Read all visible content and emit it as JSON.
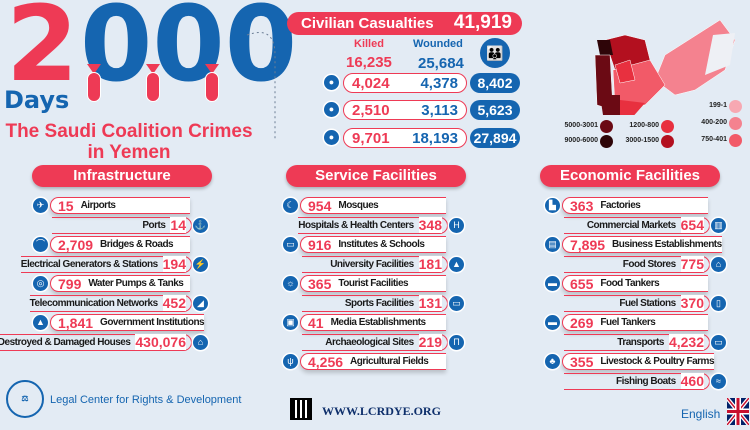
{
  "header": {
    "big_number_first": "2",
    "big_number_rest": "000",
    "days": "Days",
    "title_line1": "The Saudi Coalition Crimes",
    "title_line2": "in Yemen"
  },
  "casualties": {
    "title": "Civilian Casualties",
    "total": "41,919",
    "killed_label": "Killed",
    "wounded_label": "Wounded",
    "killed_total": "16,235",
    "wounded_total": "25,684",
    "rows": [
      {
        "group": "children-icon",
        "killed": "4,024",
        "wounded": "4,378",
        "total": "8,402"
      },
      {
        "group": "woman-icon",
        "killed": "2,510",
        "wounded": "3,113",
        "total": "5,623"
      },
      {
        "group": "man-icon",
        "killed": "9,701",
        "wounded": "18,193",
        "total": "27,894"
      }
    ]
  },
  "map_legend": [
    {
      "label": "5000-3001",
      "color": "#6b0a14"
    },
    {
      "label": "9000-6000",
      "color": "#2e0508"
    },
    {
      "label": "1200-800",
      "color": "#e8303f"
    },
    {
      "label": "3000-1500",
      "color": "#b3101f"
    },
    {
      "label": "199-1",
      "color": "#f7a8b2"
    },
    {
      "label": "400-200",
      "color": "#f4828f"
    },
    {
      "label": "750-401",
      "color": "#f25a68"
    }
  ],
  "sections": [
    {
      "title": "Infrastructure",
      "items": [
        {
          "value": "15",
          "label": "Airports",
          "side": "l",
          "icon": "airplane-icon",
          "glyph": "✈"
        },
        {
          "value": "14",
          "label": "Ports",
          "side": "r",
          "icon": "anchor-icon",
          "glyph": "⚓"
        },
        {
          "value": "2,709",
          "label": "Bridges & Roads",
          "side": "l",
          "icon": "bridge-icon",
          "glyph": "⌒"
        },
        {
          "value": "194",
          "label": "Electrical Generators & Stations",
          "side": "r",
          "icon": "generator-icon",
          "glyph": "⚡"
        },
        {
          "value": "799",
          "label": "Water Pumps & Tanks",
          "side": "l",
          "icon": "water-pump-icon",
          "glyph": "◎"
        },
        {
          "value": "452",
          "label": "Telecommunication Networks",
          "side": "r",
          "icon": "satellite-dish-icon",
          "glyph": "◢"
        },
        {
          "value": "1,841",
          "label": "Government Institutions",
          "side": "l",
          "icon": "government-building-icon",
          "glyph": "▲"
        },
        {
          "value": "430,076",
          "label": "Destroyed & Damaged Houses",
          "side": "r",
          "icon": "house-icon",
          "glyph": "⌂"
        }
      ]
    },
    {
      "title": "Service Facilities",
      "items": [
        {
          "value": "954",
          "label": "Mosques",
          "side": "l",
          "icon": "mosque-icon",
          "glyph": "☾"
        },
        {
          "value": "348",
          "label": "Hospitals & Health Centers",
          "side": "r",
          "icon": "hospital-icon",
          "glyph": "H"
        },
        {
          "value": "916",
          "label": "Institutes & Schools",
          "side": "l",
          "icon": "book-icon",
          "glyph": "▭"
        },
        {
          "value": "181",
          "label": "University Facilities",
          "side": "r",
          "icon": "graduation-cap-icon",
          "glyph": "▲"
        },
        {
          "value": "365",
          "label": "Tourist Facilities",
          "side": "l",
          "icon": "beach-icon",
          "glyph": "☼"
        },
        {
          "value": "131",
          "label": "Sports Facilities",
          "side": "r",
          "icon": "stadium-icon",
          "glyph": "▭"
        },
        {
          "value": "41",
          "label": "Media Establishments",
          "side": "l",
          "icon": "tv-icon",
          "glyph": "▣"
        },
        {
          "value": "219",
          "label": "Archaeological Sites",
          "side": "r",
          "icon": "monument-icon",
          "glyph": "Π"
        },
        {
          "value": "4,256",
          "label": "Agricultural Fields",
          "side": "l",
          "icon": "wheat-icon",
          "glyph": "ψ"
        }
      ]
    },
    {
      "title": "Economic Facilities",
      "items": [
        {
          "value": "363",
          "label": "Factories",
          "side": "l",
          "icon": "factory-icon",
          "glyph": "▙"
        },
        {
          "value": "654",
          "label": "Commercial Markets",
          "side": "r",
          "icon": "buildings-icon",
          "glyph": "▥"
        },
        {
          "value": "7,895",
          "label": "Business Establishments",
          "side": "l",
          "icon": "shop-icon",
          "glyph": "▤"
        },
        {
          "value": "775",
          "label": "Food Stores",
          "side": "r",
          "icon": "food-store-icon",
          "glyph": "⌂"
        },
        {
          "value": "655",
          "label": "Food Tankers",
          "side": "l",
          "icon": "truck-icon",
          "glyph": "▬"
        },
        {
          "value": "370",
          "label": "Fuel Stations",
          "side": "r",
          "icon": "fuel-pump-icon",
          "glyph": "▯"
        },
        {
          "value": "269",
          "label": "Fuel Tankers",
          "side": "l",
          "icon": "tanker-icon",
          "glyph": "▬"
        },
        {
          "value": "4,232",
          "label": "Transports",
          "side": "r",
          "icon": "car-icon",
          "glyph": "▭"
        },
        {
          "value": "355",
          "label": "Livestock & Poultry Farms",
          "side": "l",
          "icon": "rooster-icon",
          "glyph": "♣"
        },
        {
          "value": "460",
          "label": "Fishing Boats",
          "side": "r",
          "icon": "boat-icon",
          "glyph": "≈"
        }
      ]
    }
  ],
  "footer": {
    "org": "Legal Center for Rights & Development",
    "website": "WWW.LCRDYE.ORG",
    "language": "English",
    "logo_text": "LCRD"
  },
  "colors": {
    "red": "#ee3a55",
    "blue": "#1565b0",
    "background": "#e3ebf4"
  }
}
